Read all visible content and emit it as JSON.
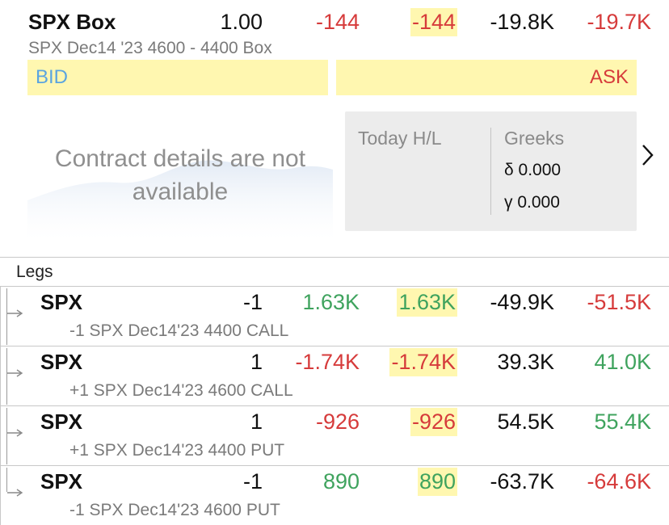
{
  "header": {
    "symbol": "SPX Box",
    "qty": "1.00",
    "val1": "-144",
    "val2": "-144",
    "val3": "-19.8K",
    "val4": "-19.7K",
    "description": "SPX Dec14 '23 4600 - 4400 Box"
  },
  "quote": {
    "bid_label": "BID",
    "ask_label": "ASK"
  },
  "contract": {
    "unavailable_text": "Contract details are not available"
  },
  "stats": {
    "today_hl_label": "Today H/L",
    "greeks_label": "Greeks",
    "delta": "δ 0.000",
    "gamma": "γ 0.000",
    "next_icon": "chevron-right-icon"
  },
  "legs": {
    "label": "Legs",
    "items": [
      {
        "symbol": "SPX",
        "qty": "-1",
        "v1": "1.63K",
        "v2": "1.63K",
        "v3": "-49.9K",
        "v4": "-51.5K",
        "desc": "-1 SPX Dec14'23 4400 CALL"
      },
      {
        "symbol": "SPX",
        "qty": "1",
        "v1": "-1.74K",
        "v2": "-1.74K",
        "v3": "39.3K",
        "v4": "41.0K",
        "desc": "+1 SPX Dec14'23 4600 CALL"
      },
      {
        "symbol": "SPX",
        "qty": "1",
        "v1": "-926",
        "v2": "-926",
        "v3": "54.5K",
        "v4": "55.4K",
        "desc": "+1 SPX Dec14'23 4400 PUT"
      },
      {
        "symbol": "SPX",
        "qty": "-1",
        "v1": "890",
        "v2": "890",
        "v3": "-63.7K",
        "v4": "-64.6K",
        "desc": "-1 SPX Dec14'23 4600 PUT"
      }
    ]
  },
  "colors": {
    "positive": "#3fa35e",
    "negative": "#d63b3b",
    "highlight": "#fff7b0",
    "bid_text": "#5aa4e0"
  }
}
